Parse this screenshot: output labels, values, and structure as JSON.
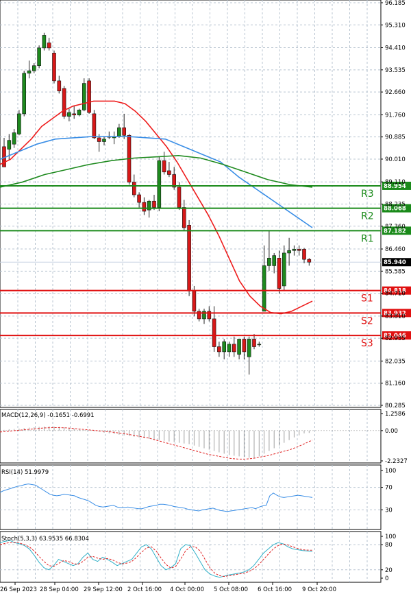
{
  "chart_data": [
    {
      "type": "candlestick",
      "panel": "price",
      "ylim": [
        80.285,
        96.185
      ],
      "y_ticks": [
        "96.185",
        "95.310",
        "94.410",
        "93.535",
        "92.660",
        "91.760",
        "90.885",
        "90.010",
        "89.110",
        "88.235",
        "87.360",
        "86.460",
        "85.585",
        "84.710",
        "83.810",
        "82.935",
        "82.035",
        "81.160",
        "80.285"
      ],
      "x_ticks": [
        "26 Sep 2023",
        "28 Sep 04:00",
        "29 Sep 12:00",
        "2 Oct 16:00",
        "4 Oct 00:00",
        "5 Oct 08:00",
        "6 Oct 16:00",
        "9 Oct 20:00"
      ],
      "current_price": 85.94,
      "candles": [
        {
          "o": 90.5,
          "h": 90.85,
          "l": 89.7,
          "c": 89.7
        },
        {
          "o": 90.4,
          "h": 91.0,
          "l": 90.0,
          "c": 90.75
        },
        {
          "o": 90.6,
          "h": 91.2,
          "l": 90.45,
          "c": 91.05
        },
        {
          "o": 91.0,
          "h": 91.95,
          "l": 90.95,
          "c": 91.8
        },
        {
          "o": 91.8,
          "h": 93.5,
          "l": 91.7,
          "c": 93.4
        },
        {
          "o": 93.4,
          "h": 93.9,
          "l": 93.2,
          "c": 93.5
        },
        {
          "o": 93.5,
          "h": 93.8,
          "l": 93.4,
          "c": 93.7
        },
        {
          "o": 93.7,
          "h": 94.5,
          "l": 93.6,
          "c": 94.4
        },
        {
          "o": 94.4,
          "h": 95.0,
          "l": 94.3,
          "c": 94.9
        },
        {
          "o": 94.6,
          "h": 94.8,
          "l": 94.3,
          "c": 94.4
        },
        {
          "o": 94.2,
          "h": 94.3,
          "l": 93.0,
          "c": 93.1
        },
        {
          "o": 93.1,
          "h": 93.3,
          "l": 92.6,
          "c": 92.7
        },
        {
          "o": 92.8,
          "h": 92.9,
          "l": 91.6,
          "c": 91.7
        },
        {
          "o": 91.7,
          "h": 92.0,
          "l": 91.5,
          "c": 91.85
        },
        {
          "o": 91.8,
          "h": 92.1,
          "l": 91.6,
          "c": 91.75
        },
        {
          "o": 91.75,
          "h": 92.0,
          "l": 91.7,
          "c": 91.95
        },
        {
          "o": 91.95,
          "h": 93.2,
          "l": 91.9,
          "c": 93.0
        },
        {
          "o": 93.1,
          "h": 93.2,
          "l": 91.8,
          "c": 91.85
        },
        {
          "o": 91.8,
          "h": 91.95,
          "l": 90.8,
          "c": 90.85
        },
        {
          "o": 90.85,
          "h": 91.0,
          "l": 90.3,
          "c": 90.7
        },
        {
          "o": 90.7,
          "h": 90.9,
          "l": 90.55,
          "c": 90.8
        },
        {
          "o": 90.9,
          "h": 91.1,
          "l": 90.8,
          "c": 90.9
        },
        {
          "o": 90.85,
          "h": 91.1,
          "l": 90.6,
          "c": 90.9
        },
        {
          "o": 90.9,
          "h": 91.4,
          "l": 90.85,
          "c": 91.25
        },
        {
          "o": 91.25,
          "h": 91.8,
          "l": 90.8,
          "c": 90.95
        },
        {
          "o": 90.95,
          "h": 91.0,
          "l": 89.0,
          "c": 89.1
        },
        {
          "o": 89.1,
          "h": 89.4,
          "l": 88.5,
          "c": 88.6
        },
        {
          "o": 88.6,
          "h": 88.7,
          "l": 88.1,
          "c": 88.3
        },
        {
          "o": 88.3,
          "h": 88.5,
          "l": 87.8,
          "c": 87.95
        },
        {
          "o": 88.0,
          "h": 88.4,
          "l": 87.7,
          "c": 88.35
        },
        {
          "o": 88.35,
          "h": 88.6,
          "l": 88.0,
          "c": 88.1
        },
        {
          "o": 88.1,
          "h": 90.1,
          "l": 87.95,
          "c": 89.95
        },
        {
          "o": 89.95,
          "h": 90.3,
          "l": 89.4,
          "c": 89.5
        },
        {
          "o": 89.55,
          "h": 89.9,
          "l": 89.3,
          "c": 89.4
        },
        {
          "o": 89.4,
          "h": 89.7,
          "l": 88.8,
          "c": 88.9
        },
        {
          "o": 88.9,
          "h": 89.1,
          "l": 88.0,
          "c": 88.1
        },
        {
          "o": 88.1,
          "h": 88.4,
          "l": 87.2,
          "c": 87.3
        },
        {
          "o": 87.4,
          "h": 87.6,
          "l": 84.6,
          "c": 84.8
        },
        {
          "o": 84.8,
          "h": 85.0,
          "l": 83.8,
          "c": 84.0
        },
        {
          "o": 84.0,
          "h": 84.1,
          "l": 83.6,
          "c": 83.7
        },
        {
          "o": 83.7,
          "h": 84.1,
          "l": 83.5,
          "c": 84.0
        },
        {
          "o": 84.0,
          "h": 84.2,
          "l": 83.6,
          "c": 83.7
        },
        {
          "o": 83.7,
          "h": 84.2,
          "l": 82.4,
          "c": 82.6
        },
        {
          "o": 82.6,
          "h": 82.8,
          "l": 82.2,
          "c": 82.4
        },
        {
          "o": 82.4,
          "h": 82.9,
          "l": 82.1,
          "c": 82.8
        },
        {
          "o": 82.4,
          "h": 82.8,
          "l": 82.2,
          "c": 82.7
        },
        {
          "o": 82.7,
          "h": 83.0,
          "l": 82.2,
          "c": 82.4
        },
        {
          "o": 82.3,
          "h": 82.9,
          "l": 82.1,
          "c": 82.9
        },
        {
          "o": 82.9,
          "h": 83.0,
          "l": 82.1,
          "c": 82.4
        },
        {
          "o": 82.2,
          "h": 83.0,
          "l": 81.5,
          "c": 82.9
        },
        {
          "o": 82.9,
          "h": 83.1,
          "l": 82.5,
          "c": 82.6
        },
        {
          "o": 82.7,
          "h": 82.8,
          "l": 82.6,
          "c": 82.7
        },
        {
          "o": 84.0,
          "h": 86.6,
          "l": 84.0,
          "c": 85.8
        },
        {
          "o": 85.8,
          "h": 87.2,
          "l": 85.6,
          "c": 86.1
        },
        {
          "o": 85.8,
          "h": 86.3,
          "l": 85.5,
          "c": 86.2
        },
        {
          "o": 86.1,
          "h": 86.4,
          "l": 84.7,
          "c": 84.9
        },
        {
          "o": 85.0,
          "h": 86.6,
          "l": 84.8,
          "c": 86.3
        },
        {
          "o": 86.3,
          "h": 86.9,
          "l": 85.8,
          "c": 86.4
        },
        {
          "o": 86.4,
          "h": 86.6,
          "l": 86.2,
          "c": 86.45
        },
        {
          "o": 86.45,
          "h": 86.6,
          "l": 86.2,
          "c": 86.4
        },
        {
          "o": 86.45,
          "h": 86.5,
          "l": 85.9,
          "c": 86.05
        },
        {
          "o": 86.05,
          "h": 86.1,
          "l": 85.8,
          "c": 85.94
        }
      ],
      "sma_fast": [
        89.8,
        90.0,
        90.4,
        90.8,
        91.3,
        91.6,
        91.9,
        92.1,
        92.2,
        92.3,
        92.3,
        92.3,
        92.2,
        91.9,
        91.5,
        91.0,
        90.5,
        89.9,
        89.2,
        88.5,
        87.8,
        87.0,
        86.1,
        85.2,
        84.6,
        84.2,
        83.95,
        83.9,
        84.0,
        84.2,
        84.4
      ],
      "sma_slow": [
        90.0,
        90.3,
        90.6,
        90.8,
        90.85,
        90.9,
        90.9,
        90.9,
        90.85,
        90.8,
        90.5,
        90.2,
        89.9,
        89.3,
        88.8,
        88.3,
        87.8,
        87.3
      ],
      "sma_long": [
        88.9,
        89.1,
        89.4,
        89.6,
        89.8,
        89.95,
        90.05,
        90.1,
        90.15,
        90.05,
        89.8,
        89.5,
        89.2,
        89.0,
        88.9
      ],
      "levels": [
        {
          "label": "R3",
          "value": 88.954,
          "text": "88.954",
          "color": "#1a8a1a"
        },
        {
          "label": "R2",
          "value": 88.068,
          "text": "88.068",
          "color": "#1a8a1a"
        },
        {
          "label": "R1",
          "value": 87.182,
          "text": "87.182",
          "color": "#1a8a1a"
        },
        {
          "label": "S1",
          "value": 84.818,
          "text": "84.818",
          "color": "#e01010"
        },
        {
          "label": "S2",
          "value": 83.932,
          "text": "83.932",
          "color": "#e01010"
        },
        {
          "label": "S3",
          "value": 83.046,
          "text": "83.046",
          "color": "#e01010"
        }
      ]
    },
    {
      "type": "bar",
      "panel": "macd",
      "title": "MACD(12,26,9) -0.1651 -0.6991",
      "ylim": [
        -2.2327,
        1.2586
      ],
      "y_ticks": [
        "1.2586",
        "0.00",
        "-2.2327"
      ],
      "values": [
        0.05,
        0.1,
        0.12,
        0.15,
        0.18,
        0.22,
        0.25,
        0.28,
        0.3,
        0.32,
        0.3,
        0.28,
        0.25,
        0.2,
        0.15,
        0.1,
        0.05,
        0.0,
        -0.05,
        -0.1,
        -0.15,
        -0.2,
        -0.25,
        -0.3,
        -0.35,
        -0.4,
        -0.45,
        -0.5,
        -0.55,
        -0.6,
        -0.65,
        -0.7,
        -0.75,
        -0.8,
        -0.85,
        -0.9,
        -0.95,
        -1.0,
        -1.1,
        -1.2,
        -1.3,
        -1.4,
        -1.5,
        -1.6,
        -1.7,
        -1.8,
        -1.85,
        -1.9,
        -1.95,
        -2.0,
        -2.0,
        -1.9,
        -1.7,
        -1.5,
        -1.3,
        -1.1,
        -0.9,
        -0.7,
        -0.5,
        -0.35,
        -0.2,
        -0.17
      ],
      "signal": [
        -0.1,
        -0.05,
        0.0,
        0.05,
        0.1,
        0.15,
        0.2,
        0.22,
        0.22,
        0.2,
        0.15,
        0.1,
        0.05,
        0.0,
        -0.05,
        -0.1,
        -0.18,
        -0.25,
        -0.35,
        -0.45,
        -0.55,
        -0.7,
        -0.85,
        -1.0,
        -1.15,
        -1.3,
        -1.45,
        -1.6,
        -1.75,
        -1.85,
        -1.95,
        -2.05,
        -2.1,
        -2.1,
        -2.05,
        -1.95,
        -1.85,
        -1.7,
        -1.55,
        -1.4,
        -1.2,
        -0.95,
        -0.7
      ]
    },
    {
      "type": "line",
      "panel": "rsi",
      "title": "RSI(14) 51.9979",
      "ylim": [
        0,
        100
      ],
      "y_ticks": [
        "100",
        "70",
        "30",
        "0"
      ],
      "values": [
        61,
        64,
        66,
        68,
        70,
        72,
        73,
        75,
        76,
        75,
        74,
        70,
        66,
        62,
        58,
        56,
        55,
        56,
        58,
        57,
        56,
        55,
        52,
        50,
        48,
        46,
        42,
        38,
        36,
        35,
        36,
        37,
        38,
        35,
        34,
        34,
        35,
        34,
        33,
        32,
        32,
        34,
        36,
        37,
        38,
        40,
        40,
        39,
        38,
        36,
        35,
        34,
        33,
        31,
        30,
        29,
        28,
        30,
        31,
        32,
        33,
        31,
        29,
        28,
        27,
        28,
        29,
        30,
        31,
        32,
        33,
        34,
        32,
        35,
        37,
        38,
        55,
        60,
        56,
        53,
        52,
        53,
        54,
        55,
        56,
        55,
        54,
        53,
        52
      ]
    },
    {
      "type": "line",
      "panel": "stoch",
      "title": "Stoch(5,3,3) 63.9535 66.8304",
      "ylim": [
        0,
        100
      ],
      "y_ticks": [
        "100",
        "80",
        "20",
        "0"
      ],
      "k": [
        85,
        88,
        90,
        85,
        82,
        78,
        70,
        55,
        38,
        25,
        20,
        30,
        45,
        40,
        35,
        30,
        35,
        50,
        60,
        45,
        40,
        50,
        45,
        38,
        30,
        35,
        40,
        45,
        60,
        75,
        80,
        70,
        50,
        30,
        20,
        25,
        35,
        70,
        80,
        78,
        60,
        40,
        20,
        10,
        5,
        2,
        5,
        8,
        10,
        12,
        15,
        20,
        30,
        45,
        60,
        70,
        80,
        85,
        82,
        75,
        70,
        68,
        66,
        65,
        64
      ],
      "d": [
        80,
        83,
        85,
        86,
        84,
        80,
        75,
        65,
        52,
        40,
        30,
        28,
        35,
        42,
        40,
        35,
        33,
        40,
        50,
        52,
        48,
        45,
        47,
        44,
        38,
        34,
        36,
        40,
        50,
        62,
        72,
        75,
        65,
        48,
        33,
        24,
        28,
        45,
        65,
        75,
        75,
        65,
        45,
        25,
        12,
        6,
        4,
        6,
        8,
        10,
        12,
        16,
        22,
        32,
        45,
        58,
        70,
        78,
        82,
        79,
        75,
        71,
        68,
        67,
        66.8
      ]
    }
  ]
}
